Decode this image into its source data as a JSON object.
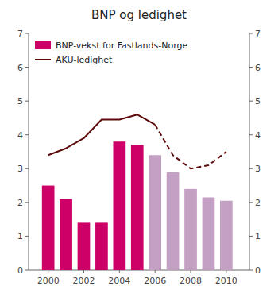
{
  "chart_data": {
    "type": "bar",
    "title": "BNP og ledighet",
    "x": [
      2000,
      2001,
      2002,
      2003,
      2004,
      2005,
      2006,
      2007,
      2008,
      2009,
      2010
    ],
    "xlim": [
      1998.9,
      2011.3
    ],
    "xticks": [
      2000,
      2002,
      2004,
      2006,
      2008,
      2010
    ],
    "ylim": [
      0,
      7
    ],
    "yticks": [
      0,
      1,
      2,
      3,
      4,
      5,
      6,
      7
    ],
    "y2lim": [
      0,
      7
    ],
    "y2ticks": [
      0,
      1,
      2,
      3,
      4,
      5,
      6,
      7
    ],
    "legend": "upper left",
    "series": [
      {
        "name": "BNP-vekst for Fastlands-Norge",
        "type": "bar",
        "colors": [
          "#CC0066",
          "#CC0066",
          "#CC0066",
          "#CC0066",
          "#CC0066",
          "#CC0066",
          "#C4A0C4",
          "#C4A0C4",
          "#C4A0C4",
          "#C4A0C4",
          "#C4A0C4"
        ],
        "values": [
          2.5,
          2.1,
          1.4,
          1.4,
          3.8,
          3.7,
          3.4,
          2.9,
          2.4,
          2.15,
          2.05
        ]
      },
      {
        "name": "AKU-ledighet",
        "type": "line",
        "axis": "y2",
        "color": "#5C0A0A",
        "line_style": "solid",
        "values": [
          3.4,
          3.6,
          3.9,
          4.45,
          4.45,
          4.6,
          4.3,
          null,
          null,
          null,
          null
        ]
      },
      {
        "type": "line",
        "axis": "y2",
        "color": "#5C0A0A",
        "line_style": "dashed",
        "values": [
          null,
          null,
          null,
          null,
          null,
          null,
          4.3,
          3.4,
          3.0,
          3.1,
          3.5
        ]
      }
    ]
  }
}
